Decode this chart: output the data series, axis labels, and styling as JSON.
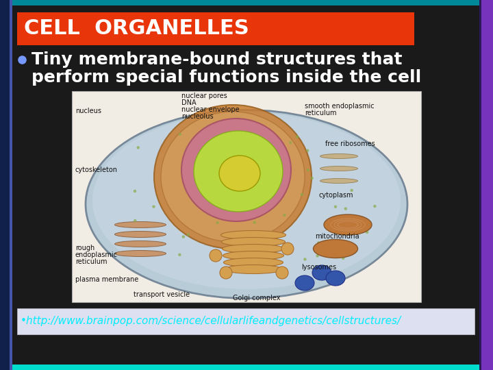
{
  "title": "CELL  ORGANELLES",
  "title_bg_color": "#e8350a",
  "title_text_color": "#ffffff",
  "body_text_line1": "Tiny membrane-bound structures that",
  "body_text_line2": "perform special functions inside the cell",
  "bullet_color": "#7799ff",
  "body_text_color": "#ffffff",
  "bg_color": "#0a0a0a",
  "slide_bg_color": "#1a1a1a",
  "link_text": "•http://www.brainpop.com/science/cellularlifeandgenetics/cellstructures/",
  "link_color": "#00eeff",
  "link_bg_color": "#dde0f0",
  "border_left_dark": "#10204a",
  "border_left_bright": "#7733bb",
  "border_top_color": "#008899",
  "border_bottom_color": "#00ddcc",
  "title_fontsize": 22,
  "body_fontsize": 18,
  "link_fontsize": 11
}
